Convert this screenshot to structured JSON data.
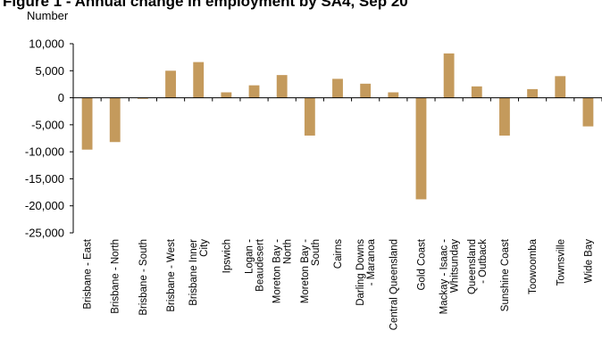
{
  "chart_data": {
    "type": "bar",
    "title": "Figure 1 - Annual change in employment by SA4, Sep 20",
    "ylabel": "Number",
    "xlabel": "",
    "ylim": [
      -25000,
      10000
    ],
    "yticks": [
      10000,
      5000,
      0,
      -5000,
      -10000,
      -15000,
      -20000,
      -25000
    ],
    "ytick_labels": [
      "10,000",
      "5,000",
      "0",
      "-5,000",
      "-10,000",
      "-15,000",
      "-20,000",
      "-25,000"
    ],
    "categories": [
      "Brisbane - East",
      "Brisbane - North",
      "Brisbane - South",
      "Brisbane - West",
      "Brisbane Inner City",
      "Ipswich",
      "Logan - Beaudesert",
      "Moreton Bay - North",
      "Moreton Bay - South",
      "Cairns",
      "Darling Downs - Maranoa",
      "Central Queensland",
      "Gold Coast",
      "Mackay - Isaac - Whitsunday",
      "Queensland - Outback",
      "Sunshine Coast",
      "Toowoomba",
      "Townsville",
      "Wide Bay"
    ],
    "category_label_lines": [
      [
        "Brisbane - East"
      ],
      [
        "Brisbane - North"
      ],
      [
        "Brisbane - South"
      ],
      [
        "Brisbane - West"
      ],
      [
        "Brisbane Inner",
        "City"
      ],
      [
        "Ipswich"
      ],
      [
        "Logan -",
        "Beaudesert"
      ],
      [
        "Moreton Bay -",
        "North"
      ],
      [
        "Moreton Bay -",
        "South"
      ],
      [
        "Cairns"
      ],
      [
        "Darling Downs",
        "- Maranoa"
      ],
      [
        "Central Queensland"
      ],
      [
        "Gold Coast"
      ],
      [
        "Mackay - Isaac -",
        "Whitsunday"
      ],
      [
        "Queensland",
        "- Outback"
      ],
      [
        "Sunshine Coast"
      ],
      [
        "Toowoomba"
      ],
      [
        "Townsville"
      ],
      [
        "Wide Bay"
      ]
    ],
    "values": [
      -9600,
      -8200,
      -200,
      5000,
      6600,
      1000,
      2300,
      4200,
      -7000,
      3500,
      2600,
      1000,
      -18800,
      8200,
      2100,
      -7000,
      1600,
      4000,
      -5300
    ],
    "bar_color": "#c49a5c",
    "grid": false,
    "legend": "none"
  }
}
